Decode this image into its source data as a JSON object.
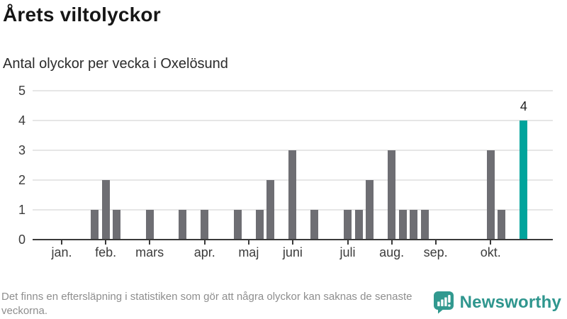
{
  "header": {
    "title": "Årets viltolyckor",
    "subtitle": "Antal olyckor per vecka i Oxelösund"
  },
  "chart_data": {
    "type": "bar",
    "title": "Årets viltolyckor",
    "subtitle": "Antal olyckor per vecka i Oxelösund",
    "series_name": "Antal olyckor per vecka",
    "x_unit": "vecka",
    "week_start": 1,
    "values": [
      0,
      0,
      0,
      1,
      2,
      1,
      0,
      0,
      1,
      0,
      0,
      1,
      0,
      1,
      0,
      0,
      1,
      0,
      1,
      2,
      0,
      3,
      0,
      1,
      0,
      0,
      1,
      1,
      2,
      0,
      3,
      1,
      1,
      1,
      0,
      0,
      0,
      0,
      0,
      3,
      1,
      0,
      4,
      0
    ],
    "highlight_week": 43,
    "bar_labels": [
      {
        "week": 43,
        "text": "4"
      }
    ],
    "y_ticks": [
      0,
      1,
      2,
      3,
      4,
      5
    ],
    "ylim": [
      0,
      5
    ],
    "grid": true,
    "legend": "none",
    "month_ticks": [
      {
        "label": "jan.",
        "week": 1
      },
      {
        "label": "feb.",
        "week": 5
      },
      {
        "label": "mars",
        "week": 9
      },
      {
        "label": "apr.",
        "week": 14
      },
      {
        "label": "maj",
        "week": 18
      },
      {
        "label": "juni",
        "week": 22
      },
      {
        "label": "juli",
        "week": 27
      },
      {
        "label": "aug.",
        "week": 31
      },
      {
        "label": "sep.",
        "week": 35
      },
      {
        "label": "okt.",
        "week": 40
      }
    ],
    "colors": {
      "bar": "#6e6e73",
      "highlight": "#00a49c",
      "gridline": "#e6e6e6",
      "axis": "#3a3a3a",
      "tick_text": "#3c3c3c"
    }
  },
  "footer": {
    "note": "Det finns en eftersläpning i statistiken som gör att några olyckor kan saknas de senaste veckorna.",
    "brand": "Newsworthy",
    "brand_color": "#2f968e",
    "logo_icon": "bar-chart-speech-bubble-icon"
  }
}
